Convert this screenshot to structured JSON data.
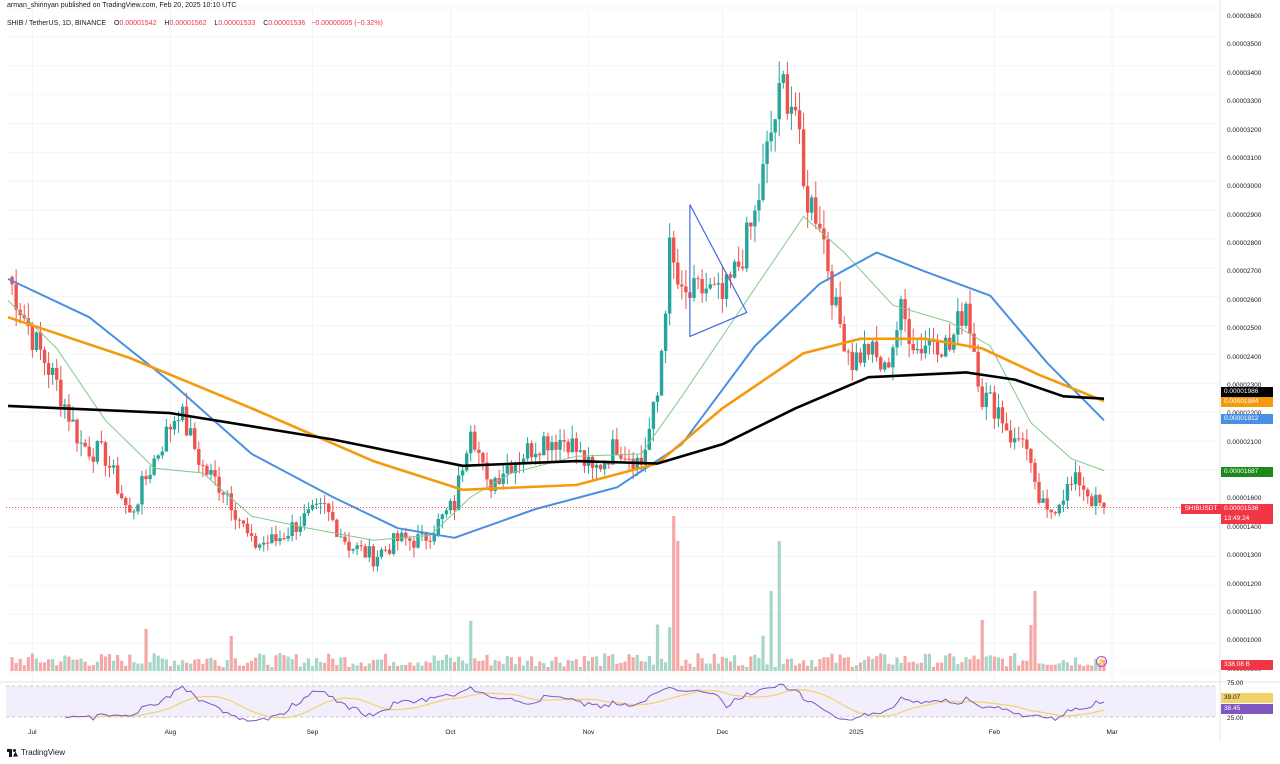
{
  "header": {
    "publisher": "arman_shirinyan published on TradingView.com, Feb 20, 2025 10:10 UTC",
    "symbol": "SHIB / TetherUS, 1D, BINANCE",
    "o_label": "O",
    "o_value": "0.00001542",
    "h_label": "H",
    "h_value": "0.00001562",
    "l_label": "L",
    "l_value": "0.00001533",
    "c_label": "C",
    "c_value": "0.00001536",
    "change": "−0.00000005 (−0.32%)"
  },
  "branding": {
    "logo_text": "TradingView"
  },
  "colors": {
    "up": "#26a69a",
    "down": "#ef5350",
    "ma_black": "#000000",
    "ma_orange": "#f59a0c",
    "ma_blue": "#4a90e2",
    "ma_green": "#7fc98a",
    "rsi_line": "#7e57c2",
    "rsi_ma": "#f2d36b",
    "triangle": "#4169e1"
  },
  "badges": [
    {
      "key": "black_ma",
      "text": "0.00001986",
      "color": "#000000"
    },
    {
      "key": "orange_ma",
      "text": "0.00001984",
      "color": "#f59a0c"
    },
    {
      "key": "blue_ma",
      "text": "0.00001912",
      "color": "#4a90e2"
    },
    {
      "key": "green_ma",
      "text": "0.00001687",
      "color": "#1b8a1b"
    },
    {
      "key": "last_price",
      "text": "0.00001536",
      "color": "#f23645"
    },
    {
      "key": "countdown",
      "text": "13:49:24",
      "color": "#f23645"
    },
    {
      "key": "volume",
      "text": "338.08 B",
      "color": "#f23645"
    },
    {
      "key": "rsi_ma",
      "text": "39.07",
      "color": "#f2d36b"
    },
    {
      "key": "rsi",
      "text": "38.45",
      "color": "#7e57c2"
    }
  ],
  "symbol_badge": "SHIBUSDT",
  "chart_data": {
    "type": "candlestick",
    "title": "SHIB / TetherUS, 1D, BINANCE",
    "y_ticks": [
      "0.00003600",
      "0.00003500",
      "0.00003400",
      "0.00003300",
      "0.00003200",
      "0.00003100",
      "0.00003000",
      "0.00002900",
      "0.00002800",
      "0.00002700",
      "0.00002600",
      "0.00002500",
      "0.00002400",
      "0.00002300",
      "0.00002200",
      "0.00002100",
      "0.00001800",
      "0.00001600",
      "0.00001400",
      "0.00001300",
      "0.00001200",
      "0.00001100",
      "0.00001000",
      "0.00000900"
    ],
    "ylim": [
      8.5e-06,
      3.62e-05
    ],
    "x_labels": [
      "Jul",
      "Aug",
      "Sep",
      "Oct",
      "Nov",
      "Dec",
      "2025",
      "Feb",
      "Mar"
    ],
    "rsi_ticks": [
      "75.00",
      "25.00"
    ],
    "anchors": [
      {
        "x": 0,
        "c": 2.5e-05
      },
      {
        "x": 6,
        "c": 2.25e-05
      },
      {
        "x": 12,
        "c": 2.05e-05
      },
      {
        "x": 18,
        "c": 1.8e-05
      },
      {
        "x": 24,
        "c": 1.75e-05
      },
      {
        "x": 30,
        "c": 1.5e-05
      },
      {
        "x": 35,
        "c": 1.7e-05
      },
      {
        "x": 42,
        "c": 1.95e-05
      },
      {
        "x": 48,
        "c": 1.7e-05
      },
      {
        "x": 54,
        "c": 1.6e-05
      },
      {
        "x": 60,
        "c": 1.38e-05
      },
      {
        "x": 66,
        "c": 1.4e-05
      },
      {
        "x": 72,
        "c": 1.48e-05
      },
      {
        "x": 78,
        "c": 1.53e-05
      },
      {
        "x": 84,
        "c": 1.38e-05
      },
      {
        "x": 90,
        "c": 1.33e-05
      },
      {
        "x": 96,
        "c": 1.4e-05
      },
      {
        "x": 102,
        "c": 1.4e-05
      },
      {
        "x": 106,
        "c": 1.47e-05
      },
      {
        "x": 110,
        "c": 1.55e-05
      },
      {
        "x": 114,
        "c": 1.9e-05
      },
      {
        "x": 118,
        "c": 1.62e-05
      },
      {
        "x": 122,
        "c": 1.7e-05
      },
      {
        "x": 126,
        "c": 1.75e-05
      },
      {
        "x": 132,
        "c": 1.82e-05
      },
      {
        "x": 138,
        "c": 1.82e-05
      },
      {
        "x": 144,
        "c": 1.68e-05
      },
      {
        "x": 150,
        "c": 1.8e-05
      },
      {
        "x": 156,
        "c": 1.72e-05
      },
      {
        "x": 160,
        "c": 2e-05
      },
      {
        "x": 163,
        "c": 2.6e-05
      },
      {
        "x": 166,
        "c": 2.4e-05
      },
      {
        "x": 172,
        "c": 2.45e-05
      },
      {
        "x": 176,
        "c": 2.4e-05
      },
      {
        "x": 180,
        "c": 2.55e-05
      },
      {
        "x": 184,
        "c": 2.75e-05
      },
      {
        "x": 188,
        "c": 3.1e-05
      },
      {
        "x": 191,
        "c": 3.3e-05
      },
      {
        "x": 194,
        "c": 3.2e-05
      },
      {
        "x": 196,
        "c": 2.85e-05
      },
      {
        "x": 200,
        "c": 2.75e-05
      },
      {
        "x": 204,
        "c": 2.35e-05
      },
      {
        "x": 208,
        "c": 2.15e-05
      },
      {
        "x": 212,
        "c": 2.2e-05
      },
      {
        "x": 216,
        "c": 2.1e-05
      },
      {
        "x": 220,
        "c": 2.35e-05
      },
      {
        "x": 224,
        "c": 2.2e-05
      },
      {
        "x": 228,
        "c": 2.25e-05
      },
      {
        "x": 232,
        "c": 2.2e-05
      },
      {
        "x": 236,
        "c": 2.4e-05
      },
      {
        "x": 240,
        "c": 2e-05
      },
      {
        "x": 244,
        "c": 1.95e-05
      },
      {
        "x": 248,
        "c": 1.8e-05
      },
      {
        "x": 250,
        "c": 1.85e-05
      },
      {
        "x": 253,
        "c": 1.6e-05
      },
      {
        "x": 256,
        "c": 1.5e-05
      },
      {
        "x": 260,
        "c": 1.6e-05
      },
      {
        "x": 264,
        "c": 1.65e-05
      },
      {
        "x": 268,
        "c": 1.55e-05
      },
      {
        "x": 270,
        "c": 1.54e-05
      }
    ],
    "ma_black": [
      [
        0,
        1.96e-05
      ],
      [
        40,
        1.93e-05
      ],
      [
        80,
        1.82e-05
      ],
      [
        112,
        1.71e-05
      ],
      [
        140,
        1.73e-05
      ],
      [
        160,
        1.72e-05
      ],
      [
        176,
        1.8e-05
      ],
      [
        194,
        1.95e-05
      ],
      [
        212,
        2.08e-05
      ],
      [
        224,
        2.09e-05
      ],
      [
        236,
        2.1e-05
      ],
      [
        248,
        2.07e-05
      ],
      [
        260,
        2e-05
      ],
      [
        270,
        1.99e-05
      ]
    ],
    "ma_orange": [
      [
        0,
        2.33e-05
      ],
      [
        30,
        2.16e-05
      ],
      [
        60,
        1.95e-05
      ],
      [
        90,
        1.73e-05
      ],
      [
        112,
        1.61e-05
      ],
      [
        140,
        1.63e-05
      ],
      [
        160,
        1.72e-05
      ],
      [
        176,
        1.95e-05
      ],
      [
        196,
        2.18e-05
      ],
      [
        210,
        2.24e-05
      ],
      [
        226,
        2.24e-05
      ],
      [
        240,
        2.2e-05
      ],
      [
        254,
        2.09e-05
      ],
      [
        270,
        1.98e-05
      ]
    ],
    "ma_blue": [
      [
        0,
        2.49e-05
      ],
      [
        20,
        2.33e-05
      ],
      [
        40,
        2.06e-05
      ],
      [
        60,
        1.76e-05
      ],
      [
        80,
        1.58e-05
      ],
      [
        96,
        1.45e-05
      ],
      [
        110,
        1.41e-05
      ],
      [
        130,
        1.53e-05
      ],
      [
        150,
        1.62e-05
      ],
      [
        166,
        1.8e-05
      ],
      [
        184,
        2.21e-05
      ],
      [
        200,
        2.47e-05
      ],
      [
        214,
        2.6e-05
      ],
      [
        226,
        2.52e-05
      ],
      [
        242,
        2.42e-05
      ],
      [
        256,
        2.14e-05
      ],
      [
        270,
        1.9e-05
      ]
    ],
    "ma_green": [
      [
        0,
        2.4e-05
      ],
      [
        12,
        2.2e-05
      ],
      [
        24,
        1.9e-05
      ],
      [
        36,
        1.7e-05
      ],
      [
        48,
        1.68e-05
      ],
      [
        60,
        1.5e-05
      ],
      [
        74,
        1.45e-05
      ],
      [
        90,
        1.4e-05
      ],
      [
        104,
        1.42e-05
      ],
      [
        114,
        1.58e-05
      ],
      [
        124,
        1.68e-05
      ],
      [
        140,
        1.75e-05
      ],
      [
        156,
        1.76e-05
      ],
      [
        166,
        2e-05
      ],
      [
        178,
        2.3e-05
      ],
      [
        190,
        2.6e-05
      ],
      [
        196,
        2.75e-05
      ],
      [
        206,
        2.6e-05
      ],
      [
        218,
        2.38e-05
      ],
      [
        232,
        2.31e-05
      ],
      [
        242,
        2.21e-05
      ],
      [
        252,
        1.89e-05
      ],
      [
        262,
        1.74e-05
      ],
      [
        270,
        1.69e-05
      ]
    ],
    "triangle": [
      [
        168,
        2.8e-05
      ],
      [
        182,
        2.35e-05
      ],
      [
        168,
        2.25e-05
      ]
    ],
    "last_price": 1.536e-05
  }
}
